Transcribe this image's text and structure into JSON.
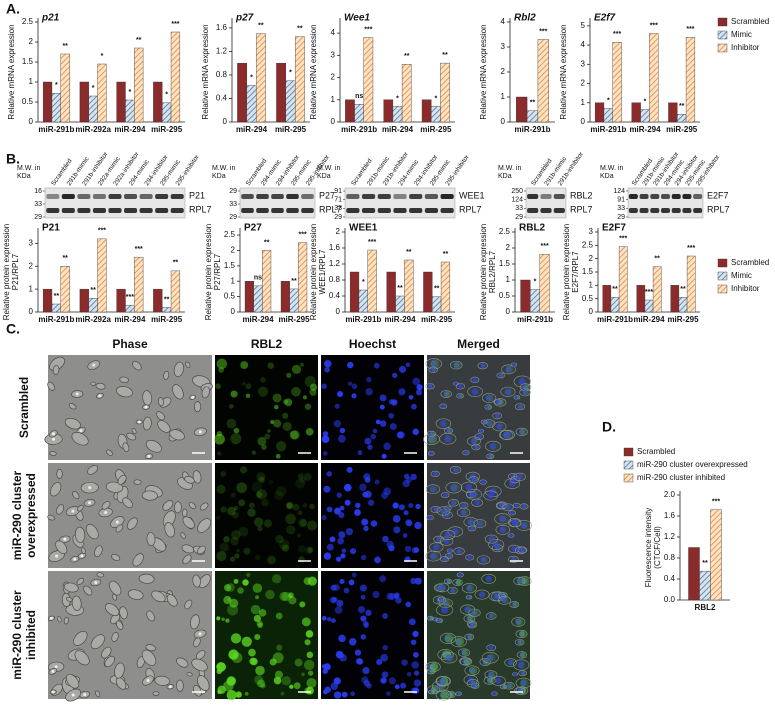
{
  "panels": [
    "A.",
    "B.",
    "C.",
    "D."
  ],
  "chart_data": [
    {
      "type": "bar",
      "title": "p21",
      "italic": true,
      "ylabel": [
        "Relative mRNA expression"
      ],
      "categories": [
        "miR-291b",
        "miR-292a",
        "miR-294",
        "miR-295"
      ],
      "ylim": [
        0,
        2.5
      ],
      "yticks": [
        0,
        0.5,
        1,
        1.5,
        2,
        2.5
      ],
      "series": [
        {
          "color": "#8b2b2b",
          "values": [
            1,
            1,
            1,
            1
          ]
        },
        {
          "color": "#d6e4f0",
          "hatch": "#4f7497",
          "values": [
            0.72,
            0.65,
            0.55,
            0.48
          ],
          "stars": [
            "*",
            "*",
            "*",
            "*"
          ]
        },
        {
          "color": "#fde3c8",
          "hatch": "#e8842c",
          "values": [
            1.7,
            1.45,
            1.85,
            2.25
          ],
          "stars": [
            "**",
            "*",
            "**",
            "***"
          ]
        }
      ]
    },
    {
      "type": "bar",
      "title": "p27",
      "italic": true,
      "ylabel": [
        "Relative mRNA expression"
      ],
      "categories": [
        "miR-294",
        "miR-295"
      ],
      "ylim": [
        0,
        1.7
      ],
      "yticks": [
        0,
        0.4,
        0.8,
        1.2,
        1.6
      ],
      "series": [
        {
          "color": "#8b2b2b",
          "values": [
            1,
            1
          ]
        },
        {
          "color": "#d6e4f0",
          "hatch": "#4f7497",
          "values": [
            0.62,
            0.7
          ],
          "stars": [
            "*",
            "*"
          ]
        },
        {
          "color": "#fde3c8",
          "hatch": "#e8842c",
          "values": [
            1.5,
            1.45
          ],
          "stars": [
            "**",
            "**"
          ]
        }
      ]
    },
    {
      "type": "bar",
      "title": "Wee1",
      "italic": true,
      "ylabel": [
        "Relative mRNA expression"
      ],
      "categories": [
        "miR-291b",
        "miR-294",
        "miR-295"
      ],
      "ylim": [
        0,
        4.5
      ],
      "yticks": [
        0,
        1,
        2,
        3,
        4
      ],
      "series": [
        {
          "color": "#8b2b2b",
          "values": [
            1,
            1,
            1
          ]
        },
        {
          "color": "#d6e4f0",
          "hatch": "#4f7497",
          "values": [
            0.8,
            0.7,
            0.7
          ],
          "stars": [
            "ns",
            "*",
            "*"
          ]
        },
        {
          "color": "#fde3c8",
          "hatch": "#e8842c",
          "values": [
            3.8,
            2.6,
            2.65
          ],
          "stars": [
            "***",
            "**",
            "**"
          ]
        }
      ]
    },
    {
      "type": "bar",
      "title": "Rbl2",
      "italic": true,
      "ylabel": [
        "Relative mRNA expression"
      ],
      "categories": [
        "miR-291b"
      ],
      "ylim": [
        0,
        4
      ],
      "yticks": [
        0,
        1,
        2,
        3,
        4
      ],
      "series": [
        {
          "color": "#8b2b2b",
          "values": [
            1
          ]
        },
        {
          "color": "#d6e4f0",
          "hatch": "#4f7497",
          "values": [
            0.45
          ],
          "stars": [
            "**"
          ]
        },
        {
          "color": "#fde3c8",
          "hatch": "#e8842c",
          "values": [
            3.3
          ],
          "stars": [
            "***"
          ]
        }
      ]
    },
    {
      "type": "bar",
      "title": "E2f7",
      "italic": true,
      "ylabel": [
        "Relative mRNA expression"
      ],
      "legend": true,
      "categories": [
        "miR-291b",
        "miR-294",
        "miR-295"
      ],
      "ylim": [
        0,
        5.2
      ],
      "yticks": [
        0,
        1,
        2,
        3,
        4,
        5
      ],
      "series": [
        {
          "name": "Scrambled",
          "color": "#8b2b2b",
          "values": [
            1,
            1,
            1
          ]
        },
        {
          "name": "Mimic",
          "color": "#d6e4f0",
          "hatch": "#4f7497",
          "values": [
            0.7,
            0.65,
            0.4
          ],
          "stars": [
            "*",
            "*",
            "**"
          ]
        },
        {
          "name": "Inhibitor",
          "color": "#fde3c8",
          "hatch": "#e8842c",
          "values": [
            4.15,
            4.6,
            4.4
          ],
          "stars": [
            "***",
            "***",
            "***"
          ]
        }
      ]
    },
    {
      "type": "bar",
      "title": "P21",
      "ylabel": [
        "Relative protein expression",
        "P21/RPL7"
      ],
      "categories": [
        "miR-291b",
        "miR-292a",
        "miR-294",
        "miR-295"
      ],
      "ylim": [
        0,
        3.5
      ],
      "yticks": [
        0,
        1,
        2,
        3
      ],
      "series": [
        {
          "color": "#8b2b2b",
          "values": [
            1,
            1,
            1,
            1
          ]
        },
        {
          "color": "#d6e4f0",
          "hatch": "#4f7497",
          "values": [
            0.35,
            0.6,
            0.3,
            0.2
          ],
          "stars": [
            "**",
            "**",
            "***",
            "**"
          ]
        },
        {
          "color": "#fde3c8",
          "hatch": "#e8842c",
          "values": [
            2.0,
            3.2,
            2.4,
            1.8
          ],
          "stars": [
            "**",
            "***",
            "***",
            "**"
          ]
        }
      ]
    },
    {
      "type": "bar",
      "title": "P27",
      "ylabel": [
        "Relative protein expression",
        "P27/RPL7"
      ],
      "categories": [
        "miR-294",
        "miR-295"
      ],
      "ylim": [
        0,
        2.6
      ],
      "yticks": [
        0,
        0.5,
        1,
        1.5,
        2,
        2.5
      ],
      "series": [
        {
          "color": "#8b2b2b",
          "values": [
            1,
            1
          ]
        },
        {
          "color": "#d6e4f0",
          "hatch": "#4f7497",
          "values": [
            0.85,
            0.75
          ],
          "stars": [
            "ns",
            "**"
          ]
        },
        {
          "color": "#fde3c8",
          "hatch": "#e8842c",
          "values": [
            2.0,
            2.25
          ],
          "stars": [
            "**",
            "***"
          ]
        }
      ]
    },
    {
      "type": "bar",
      "title": "WEE1",
      "ylabel": [
        "Relative protein expression",
        "WEE1/RPL7"
      ],
      "categories": [
        "miR-291b",
        "miR-294",
        "miR-295"
      ],
      "ylim": [
        0,
        2
      ],
      "yticks": [
        0,
        0.4,
        0.8,
        1.2,
        1.6,
        2
      ],
      "series": [
        {
          "color": "#8b2b2b",
          "values": [
            1,
            1,
            1
          ]
        },
        {
          "color": "#d6e4f0",
          "hatch": "#4f7497",
          "values": [
            0.55,
            0.4,
            0.38
          ],
          "stars": [
            "*",
            "**",
            "**"
          ]
        },
        {
          "color": "#fde3c8",
          "hatch": "#e8842c",
          "values": [
            1.55,
            1.3,
            1.25
          ],
          "stars": [
            "***",
            "**",
            "**"
          ]
        }
      ]
    },
    {
      "type": "bar",
      "title": "RBL2",
      "ylabel": [
        "Relative protein expression",
        "RBL2/RPL7"
      ],
      "categories": [
        "miR-291b"
      ],
      "ylim": [
        0,
        2.5
      ],
      "yticks": [
        0,
        0.5,
        1,
        1.5,
        2,
        2.5
      ],
      "series": [
        {
          "color": "#8b2b2b",
          "values": [
            1
          ]
        },
        {
          "color": "#d6e4f0",
          "hatch": "#4f7497",
          "values": [
            0.7
          ],
          "stars": [
            "*"
          ]
        },
        {
          "color": "#fde3c8",
          "hatch": "#e8842c",
          "values": [
            1.8
          ],
          "stars": [
            "***"
          ]
        }
      ]
    },
    {
      "type": "bar",
      "title": "E2F7",
      "ylabel": [
        "Relative protein expression",
        "E2F7/RPL7"
      ],
      "legend": true,
      "categories": [
        "miR-291b",
        "miR-294",
        "miR-295"
      ],
      "ylim": [
        0,
        3
      ],
      "yticks": [
        0,
        0.5,
        1,
        1.5,
        2,
        2.5,
        3
      ],
      "series": [
        {
          "name": "Scrambled",
          "color": "#8b2b2b",
          "values": [
            1,
            1,
            1
          ]
        },
        {
          "name": "Mimic",
          "color": "#d6e4f0",
          "hatch": "#4f7497",
          "values": [
            0.55,
            0.45,
            0.55
          ],
          "stars": [
            "**",
            "***",
            "**"
          ]
        },
        {
          "name": "Inhibitor",
          "color": "#fde3c8",
          "hatch": "#e8842c",
          "values": [
            2.45,
            1.7,
            2.1
          ],
          "stars": [
            "***",
            "**",
            "***"
          ]
        }
      ]
    },
    {
      "type": "bar",
      "ylabel": [
        "Fluorescence intensity",
        "(CTCF/Cell)"
      ],
      "legend": true,
      "categories": [
        "RBL2"
      ],
      "ylim": [
        0,
        2
      ],
      "yticks": [
        {
          "value": 0,
          "label": "0.0"
        },
        0.4,
        0.8,
        1.2,
        1.6,
        {
          "value": 2,
          "label": "2.0"
        }
      ],
      "series": [
        {
          "name": "Scrambled",
          "color": "#8b2b2b",
          "values": [
            1
          ]
        },
        {
          "name": "miR-290 cluster overexpressed",
          "color": "#d6e4f0",
          "hatch": "#4f7497",
          "values": [
            0.55
          ],
          "stars": [
            "**"
          ]
        },
        {
          "name": "miR-290 cluster inhibited",
          "color": "#fde3c8",
          "hatch": "#e8842c",
          "values": [
            1.72
          ],
          "stars": [
            "***"
          ]
        }
      ]
    }
  ],
  "blots": [
    {
      "mw_label": [
        "M.W. in",
        "KDa"
      ],
      "lanes": [
        "Scrambled",
        "291b-mimic",
        "291b-inhibitor",
        "292a-mimic",
        "292a-inhibitor",
        "294-mimic",
        "294-inhibitor",
        "295-mimic",
        "295-inhibitor"
      ],
      "markers": [
        "16",
        "33",
        "29"
      ],
      "proteins": [
        "P21",
        "RPL7"
      ]
    },
    {
      "mw_label": [
        "M.W. in",
        "KDa"
      ],
      "lanes": [
        "Scrambled",
        "294-mimic",
        "294-inhibitor",
        "295-mimic",
        "295-inhibitor"
      ],
      "markers": [
        "29",
        "33",
        "29"
      ],
      "proteins": [
        "P27",
        "RPL7"
      ]
    },
    {
      "mw_label": [
        "M.W. in",
        "KDa"
      ],
      "lanes": [
        "Scrambled",
        "291b-mimic",
        "291b-inhibitor",
        "294-mimic",
        "294-inhibitor",
        "295-mimic",
        "295-inhibitor"
      ],
      "markers": [
        "91",
        "71",
        "33",
        "29"
      ],
      "proteins": [
        "WEE1",
        "RPL7"
      ]
    },
    {
      "mw_label": [
        "M.W. in",
        "KDa"
      ],
      "lanes": [
        "Scrambled",
        "291b-mimic",
        "291b-inhibitor"
      ],
      "markers": [
        "250",
        "124",
        "33",
        "29"
      ],
      "proteins": [
        "RBL2",
        "RPL7"
      ]
    },
    {
      "mw_label": [
        "M.W. in",
        "KDa"
      ],
      "lanes": [
        "Scrambled",
        "291b-mimic",
        "291b-inhibitor",
        "294-mimic",
        "294-inhibitor",
        "295-mimic",
        "295-inhibitor"
      ],
      "markers": [
        "124",
        "91",
        "33",
        "29"
      ],
      "proteins": [
        "E2F7",
        "RPL7"
      ]
    }
  ],
  "panel_c": {
    "columns": [
      "Phase",
      "RBL2",
      "Hoechst",
      "Merged"
    ],
    "rows": [
      [
        "Scrambled"
      ],
      [
        "miR-290 cluster",
        "overexpressed"
      ],
      [
        "miR-290 cluster",
        "inhibited"
      ]
    ]
  }
}
